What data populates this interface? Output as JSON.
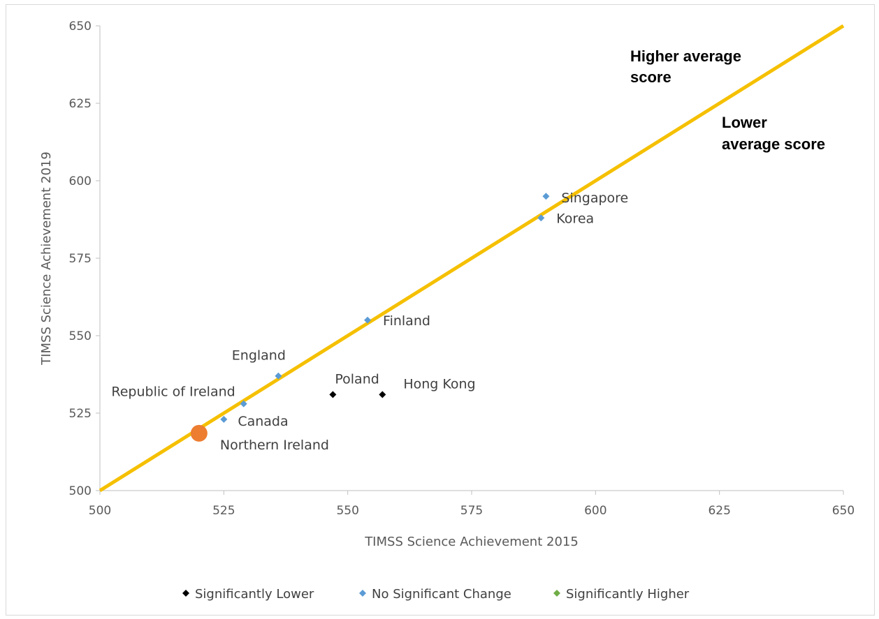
{
  "chart_data": {
    "type": "scatter",
    "title": "",
    "xlabel": "TIMSS Science Achievement  2015",
    "ylabel": "TIMSS Science Achievement  2019",
    "xlim": [
      500,
      650
    ],
    "ylim": [
      500,
      650
    ],
    "xticks": [
      "500",
      "525",
      "550",
      "575",
      "600",
      "625",
      "650"
    ],
    "yticks": [
      "500",
      "525",
      "550",
      "575",
      "600",
      "625",
      "650"
    ],
    "grid": false,
    "reference_line": {
      "from": [
        500,
        500
      ],
      "to": [
        650,
        650
      ],
      "color": "#f5c000"
    },
    "region_labels": {
      "above": "Higher average score",
      "below": "Lower average score"
    },
    "series": [
      {
        "name": "Significantly Lower",
        "color": "#000000",
        "marker": "diamond",
        "points": [
          {
            "label": "Poland",
            "x": 547,
            "y": 531
          },
          {
            "label": "Hong Kong",
            "x": 557,
            "y": 531
          }
        ]
      },
      {
        "name": "No Significant Change",
        "color": "#5b9bd5",
        "marker": "diamond",
        "points": [
          {
            "label": "Singapore",
            "x": 590,
            "y": 595
          },
          {
            "label": "Korea",
            "x": 589,
            "y": 588
          },
          {
            "label": "Finland",
            "x": 554,
            "y": 555
          },
          {
            "label": "England",
            "x": 536,
            "y": 537
          },
          {
            "label": "Republic of Ireland",
            "x": 529,
            "y": 528
          },
          {
            "label": "Canada",
            "x": 525,
            "y": 523
          }
        ]
      },
      {
        "name": "Significantly Higher",
        "color": "#70ad47",
        "marker": "diamond",
        "points": []
      }
    ],
    "highlight": {
      "label": "Northern Ireland",
      "x": 520,
      "y": 518.5,
      "color": "#ed7d31"
    },
    "legend_position": "bottom"
  }
}
